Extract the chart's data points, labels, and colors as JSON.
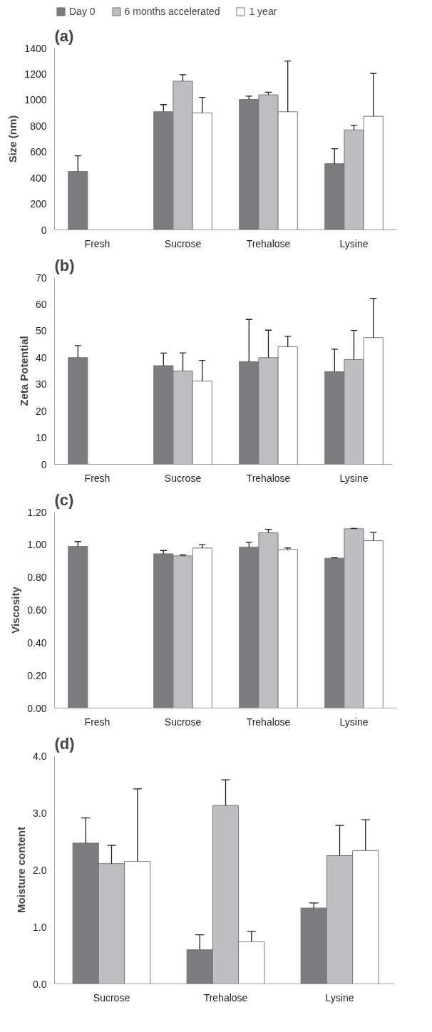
{
  "chart_data": [
    {
      "type": "bar",
      "title": "(a)",
      "ylabel": "Size (nm)",
      "categories": [
        "Fresh",
        "Sucrose",
        "Trehalose",
        "Lysine"
      ],
      "ylim": [
        0,
        1400
      ],
      "yticks": [
        0,
        200,
        400,
        600,
        800,
        1000,
        1200,
        1400
      ],
      "grid": false,
      "legend": "top",
      "series": [
        {
          "name": "Day 0",
          "color": "#7b7c80",
          "values": [
            450,
            910,
            1005,
            510
          ],
          "errors": [
            [
              450,
              570
            ],
            [
              910,
              965
            ],
            [
              1005,
              1030
            ],
            [
              510,
              625
            ]
          ]
        },
        {
          "name": "6 months accelerated",
          "color": "#bdbec2",
          "values": [
            null,
            1145,
            1040,
            770
          ],
          "errors": [
            null,
            [
              1145,
              1195
            ],
            [
              1040,
              1060
            ],
            [
              770,
              805
            ]
          ]
        },
        {
          "name": "1 year",
          "color": "#ffffff",
          "values": [
            null,
            900,
            910,
            875
          ],
          "errors": [
            null,
            [
              900,
              1020
            ],
            [
              910,
              1300
            ],
            [
              875,
              1205
            ]
          ]
        }
      ]
    },
    {
      "type": "bar",
      "title": "(b)",
      "ylabel": "Zeta Potential",
      "categories": [
        "Fresh",
        "Sucrose",
        "Trehalose",
        "Lysine"
      ],
      "ylim": [
        0,
        70
      ],
      "yticks": [
        0,
        10,
        20,
        30,
        40,
        50,
        60,
        70
      ],
      "grid": false,
      "series": [
        {
          "color": "#7b7c80",
          "values": [
            40,
            37,
            38.5,
            34.7
          ],
          "errors": [
            [
              40,
              44.5
            ],
            [
              37,
              41.7
            ],
            [
              38.5,
              54.3
            ],
            [
              34.7,
              43.2
            ]
          ]
        },
        {
          "color": "#bdbec2",
          "values": [
            null,
            35,
            40,
            39.3
          ],
          "errors": [
            null,
            [
              35,
              41.8
            ],
            [
              40,
              50.3
            ],
            [
              39.3,
              50.2
            ]
          ]
        },
        {
          "color": "#ffffff",
          "values": [
            null,
            31.2,
            44.1,
            47.5
          ],
          "errors": [
            null,
            [
              31.2,
              39
            ],
            [
              44.1,
              48
            ],
            [
              47.5,
              62.2
            ]
          ]
        }
      ]
    },
    {
      "type": "bar",
      "title": "(c)",
      "ylabel": "Viscosity",
      "categories": [
        "Fresh",
        "Sucrose",
        "Trehalose",
        "Lysine"
      ],
      "ylim": [
        0,
        1.2
      ],
      "yticks": [
        {
          "value": 0,
          "label": "0.00"
        },
        {
          "value": 0.2,
          "label": "0.20"
        },
        {
          "value": 0.4,
          "label": "0.40"
        },
        {
          "value": 0.6,
          "label": "0.60"
        },
        {
          "value": 0.8,
          "label": "0.80"
        },
        {
          "value": 1,
          "label": "1.00"
        },
        {
          "value": 1.2,
          "label": "1.20"
        }
      ],
      "grid": false,
      "series": [
        {
          "color": "#7b7c80",
          "values": [
            0.99,
            0.945,
            0.985,
            0.918
          ],
          "errors": [
            [
              0.99,
              1.02
            ],
            [
              0.945,
              0.965
            ],
            [
              0.985,
              1.015
            ],
            [
              0.918,
              0.92
            ]
          ]
        },
        {
          "color": "#bdbec2",
          "values": [
            null,
            0.932,
            1.073,
            1.098
          ],
          "errors": [
            null,
            [
              0.932,
              0.937
            ],
            [
              1.073,
              1.093
            ],
            [
              1.098,
              1.1
            ]
          ]
        },
        {
          "color": "#ffffff",
          "values": [
            null,
            0.98,
            0.97,
            1.025
          ],
          "errors": [
            null,
            [
              0.98,
              1.0
            ],
            [
              0.97,
              0.98
            ],
            [
              1.025,
              1.075
            ]
          ]
        }
      ]
    },
    {
      "type": "bar",
      "title": "(d)",
      "ylabel": "Moisture content",
      "categories": [
        "Sucrose",
        "Trehalose",
        "Lysine"
      ],
      "ylim": [
        0,
        4
      ],
      "yticks": [
        {
          "value": 0,
          "label": "0.0"
        },
        {
          "value": 1,
          "label": "1.0"
        },
        {
          "value": 2,
          "label": "2.0"
        },
        {
          "value": 3,
          "label": "3.0"
        },
        {
          "value": 4,
          "label": "4.0"
        }
      ],
      "grid": false,
      "series": [
        {
          "color": "#7b7c80",
          "values": [
            2.47,
            0.6,
            1.33
          ],
          "errors": [
            [
              2.47,
              2.91
            ],
            [
              0.6,
              0.86
            ],
            [
              1.33,
              1.42
            ]
          ]
        },
        {
          "color": "#bdbec2",
          "values": [
            2.11,
            3.13,
            2.25
          ],
          "errors": [
            [
              2.11,
              2.43
            ],
            [
              3.13,
              3.58
            ],
            [
              2.25,
              2.78
            ]
          ]
        },
        {
          "color": "#ffffff",
          "values": [
            2.15,
            0.74,
            2.34
          ],
          "errors": [
            [
              2.15,
              3.42
            ],
            [
              0.74,
              0.92
            ],
            [
              2.34,
              2.88
            ]
          ]
        }
      ]
    }
  ]
}
